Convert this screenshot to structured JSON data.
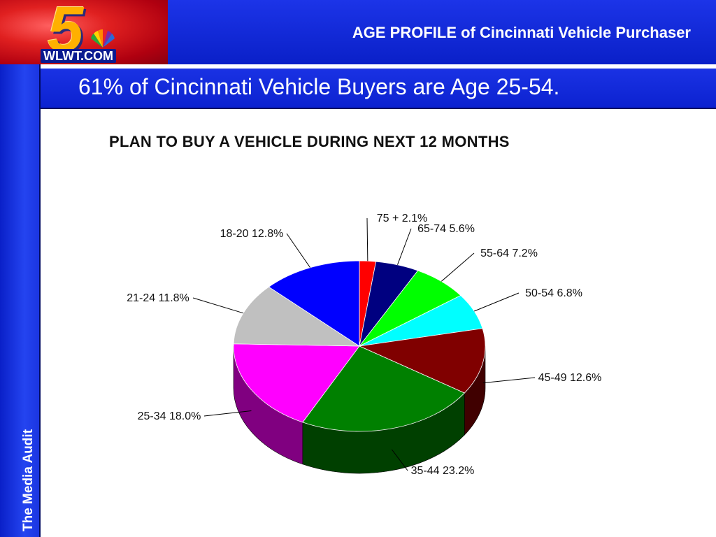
{
  "header": {
    "logo_text": "WLWT.COM",
    "logo_number": "5",
    "title": "AGE PROFILE of Cincinnati Vehicle Purchaser"
  },
  "sidebar": {
    "label": "The Media Audit"
  },
  "subtitle": "61% of Cincinnati Vehicle Buyers are Age 25-54.",
  "chart_data": {
    "type": "pie",
    "title": "PLAN TO BUY A VEHICLE DURING NEXT 12 MONTHS",
    "slices": [
      {
        "name": "75 +",
        "value": 2.1,
        "label": "75 + 2.1%",
        "color": "#ff0000",
        "side": "#a00000"
      },
      {
        "name": "65-74",
        "value": 5.6,
        "label": "65-74 5.6%",
        "color": "#000080",
        "side": "#000040"
      },
      {
        "name": "55-64",
        "value": 7.2,
        "label": "55-64 7.2%",
        "color": "#00ff00",
        "side": "#009000"
      },
      {
        "name": "50-54",
        "value": 6.8,
        "label": "50-54 6.8%",
        "color": "#00ffff",
        "side": "#009a9a"
      },
      {
        "name": "45-49",
        "value": 12.6,
        "label": "45-49 12.6%",
        "color": "#800000",
        "side": "#400000"
      },
      {
        "name": "35-44",
        "value": 23.2,
        "label": "35-44 23.2%",
        "color": "#008000",
        "side": "#004000"
      },
      {
        "name": "25-34",
        "value": 18.0,
        "label": "25-34 18.0%",
        "color": "#ff00ff",
        "side": "#800080"
      },
      {
        "name": "21-24",
        "value": 11.8,
        "label": "21-24 11.8%",
        "color": "#c0c0c0",
        "side": "#808080"
      },
      {
        "name": "18-20",
        "value": 12.8,
        "label": "18-20 12.8%",
        "color": "#0000ff",
        "side": "#000090"
      }
    ]
  }
}
